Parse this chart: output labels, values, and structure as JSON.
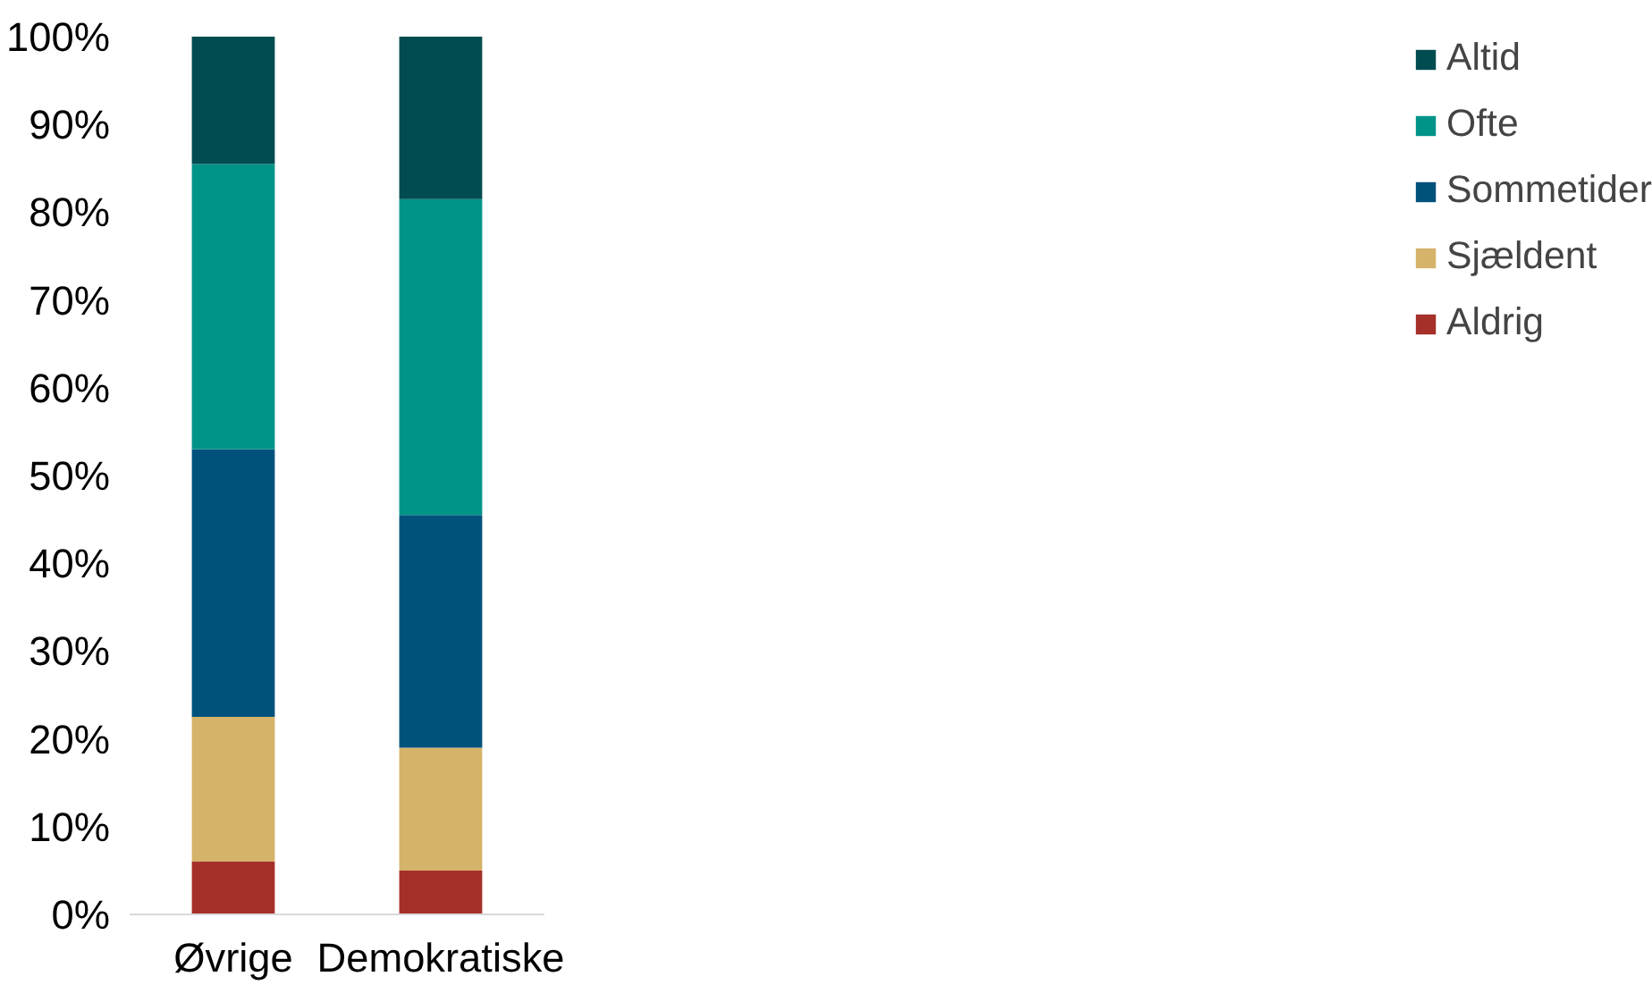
{
  "chart_data": {
    "type": "bar",
    "stacked": true,
    "categories": [
      "Øvrige",
      "Demokratiske"
    ],
    "series": [
      {
        "name": "Aldrig",
        "color": "#a5302a",
        "values": [
          6,
          5
        ]
      },
      {
        "name": "Sjældent",
        "color": "#d5b36a",
        "values": [
          16.5,
          14
        ]
      },
      {
        "name": "Sommetider",
        "color": "#00527c",
        "values": [
          30.5,
          26.5
        ]
      },
      {
        "name": "Ofte",
        "color": "#009488",
        "values": [
          32.5,
          36
        ]
      },
      {
        "name": "Altid",
        "color": "#004c50",
        "values": [
          14.5,
          18.5
        ]
      }
    ],
    "ylim": [
      0,
      100
    ],
    "yticks": [
      {
        "value": 0,
        "label": "0%"
      },
      {
        "value": 10,
        "label": "10%"
      },
      {
        "value": 20,
        "label": "20%"
      },
      {
        "value": 30,
        "label": "30%"
      },
      {
        "value": 40,
        "label": "40%"
      },
      {
        "value": 50,
        "label": "50%"
      },
      {
        "value": 60,
        "label": "60%"
      },
      {
        "value": 70,
        "label": "70%"
      },
      {
        "value": 80,
        "label": "80%"
      },
      {
        "value": 90,
        "label": "90%"
      },
      {
        "value": 100,
        "label": "100%"
      }
    ],
    "grid": false,
    "legend": "right"
  }
}
